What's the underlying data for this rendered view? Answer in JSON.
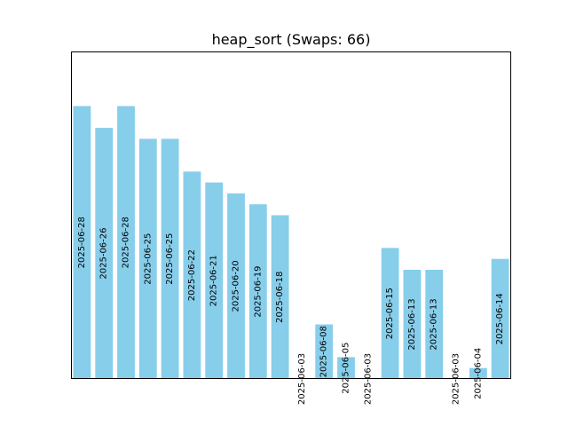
{
  "chart_data": {
    "type": "bar",
    "title": "heap_sort (Swaps: 66)",
    "xlabel": "",
    "ylabel": "",
    "ylim": [
      0,
      30
    ],
    "grid": false,
    "axis_ticks": false,
    "bar_color": "#87ceeb",
    "values": [
      25,
      23,
      25,
      22,
      22,
      19,
      18,
      17,
      16,
      15,
      0,
      5,
      2,
      0,
      12,
      10,
      10,
      0,
      1,
      11
    ],
    "labels": [
      "2025-06-28",
      "2025-06-26",
      "2025-06-28",
      "2025-06-25",
      "2025-06-25",
      "2025-06-22",
      "2025-06-21",
      "2025-06-20",
      "2025-06-19",
      "2025-06-18",
      "2025-06-03",
      "2025-06-08",
      "2025-06-05",
      "2025-06-03",
      "2025-06-15",
      "2025-06-13",
      "2025-06-13",
      "2025-06-03",
      "2025-06-04",
      "2025-06-14"
    ]
  }
}
